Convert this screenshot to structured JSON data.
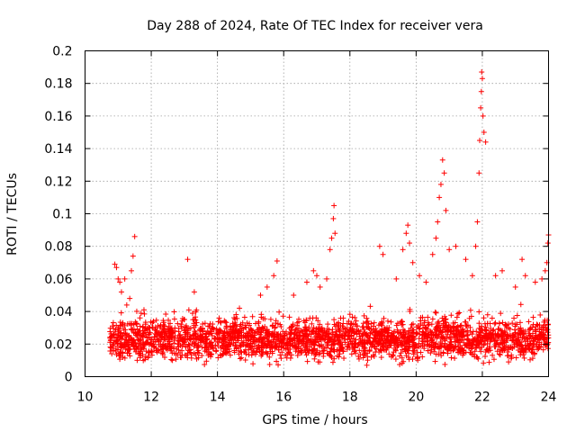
{
  "chart_data": {
    "type": "scatter",
    "title": "Day 288 of 2024, Rate Of TEC Index for receiver vera",
    "xlabel": "GPS time / hours",
    "ylabel": "ROTI / TECUs",
    "xlim": [
      10,
      24
    ],
    "ylim": [
      0,
      0.2
    ],
    "grid": true,
    "marker": "+",
    "color": "#ff0000",
    "x_ticks": [
      10,
      12,
      14,
      16,
      18,
      20,
      22,
      24
    ],
    "x_tick_labels": [
      "10",
      "12",
      "14",
      "16",
      "18",
      "20",
      "22",
      "24"
    ],
    "y_ticks": [
      0,
      0.02,
      0.04,
      0.06,
      0.08,
      0.1,
      0.12,
      0.14,
      0.16,
      0.18,
      0.2
    ],
    "y_tick_labels": [
      "0",
      "0.02",
      "0.04",
      "0.06",
      "0.08",
      "0.1",
      "0.12",
      "0.14",
      "0.16",
      "0.18",
      "0.2"
    ],
    "x_range": [
      10.75,
      24
    ],
    "baseline_band": [
      0.005,
      0.04
    ],
    "series": [
      {
        "name": "ROTI",
        "points": [
          [
            10.9,
            0.069
          ],
          [
            10.95,
            0.067
          ],
          [
            11.0,
            0.06
          ],
          [
            11.05,
            0.058
          ],
          [
            11.1,
            0.052
          ],
          [
            11.2,
            0.06
          ],
          [
            11.35,
            0.048
          ],
          [
            11.4,
            0.065
          ],
          [
            11.45,
            0.074
          ],
          [
            11.5,
            0.086
          ],
          [
            13.1,
            0.072
          ],
          [
            13.3,
            0.052
          ],
          [
            15.3,
            0.05
          ],
          [
            15.5,
            0.055
          ],
          [
            15.7,
            0.062
          ],
          [
            15.8,
            0.071
          ],
          [
            16.3,
            0.05
          ],
          [
            16.7,
            0.058
          ],
          [
            16.9,
            0.065
          ],
          [
            17.0,
            0.062
          ],
          [
            17.1,
            0.055
          ],
          [
            17.3,
            0.06
          ],
          [
            17.4,
            0.078
          ],
          [
            17.45,
            0.085
          ],
          [
            17.5,
            0.097
          ],
          [
            17.52,
            0.105
          ],
          [
            17.55,
            0.088
          ],
          [
            18.9,
            0.08
          ],
          [
            19.0,
            0.075
          ],
          [
            19.4,
            0.06
          ],
          [
            19.6,
            0.078
          ],
          [
            19.7,
            0.088
          ],
          [
            19.75,
            0.093
          ],
          [
            19.8,
            0.082
          ],
          [
            19.9,
            0.07
          ],
          [
            20.1,
            0.062
          ],
          [
            20.3,
            0.058
          ],
          [
            20.5,
            0.075
          ],
          [
            20.6,
            0.085
          ],
          [
            20.65,
            0.095
          ],
          [
            20.7,
            0.11
          ],
          [
            20.75,
            0.118
          ],
          [
            20.8,
            0.133
          ],
          [
            20.85,
            0.125
          ],
          [
            20.9,
            0.102
          ],
          [
            21.0,
            0.078
          ],
          [
            21.2,
            0.08
          ],
          [
            21.5,
            0.072
          ],
          [
            21.7,
            0.062
          ],
          [
            21.8,
            0.08
          ],
          [
            21.85,
            0.095
          ],
          [
            21.9,
            0.125
          ],
          [
            21.92,
            0.145
          ],
          [
            21.95,
            0.165
          ],
          [
            21.97,
            0.175
          ],
          [
            21.98,
            0.187
          ],
          [
            22.0,
            0.183
          ],
          [
            22.02,
            0.16
          ],
          [
            22.05,
            0.15
          ],
          [
            22.1,
            0.144
          ],
          [
            22.4,
            0.062
          ],
          [
            22.6,
            0.065
          ],
          [
            23.0,
            0.055
          ],
          [
            23.2,
            0.072
          ],
          [
            23.3,
            0.062
          ],
          [
            23.6,
            0.058
          ],
          [
            23.8,
            0.06
          ],
          [
            23.9,
            0.065
          ],
          [
            24.0,
            0.087
          ],
          [
            23.98,
            0.082
          ],
          [
            23.95,
            0.07
          ]
        ]
      }
    ]
  }
}
